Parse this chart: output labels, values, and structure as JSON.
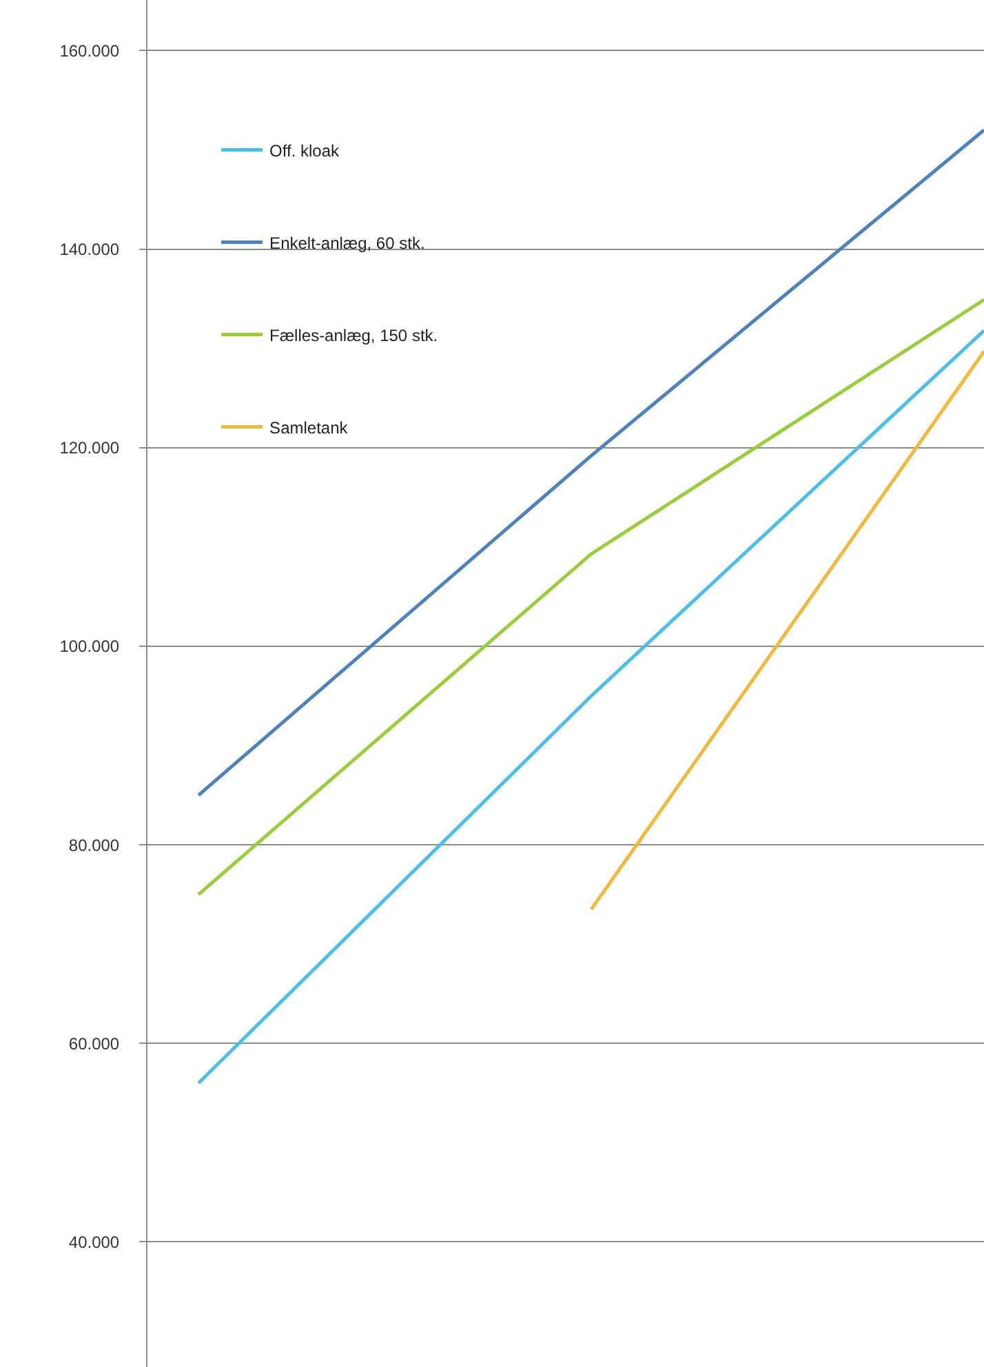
{
  "chart_data": {
    "type": "line",
    "categories": [
      null,
      null,
      null
    ],
    "series": [
      {
        "name": "Off. kloak",
        "color": "#4bbfe8",
        "values": [
          56,
          95,
          131.8
        ]
      },
      {
        "name": "Enkelt-anlæg, 60 stk.",
        "color": "#4f81bd",
        "values": [
          85,
          119.2,
          152
        ]
      },
      {
        "name": "Fælles-anlæg, 150 stk.",
        "color": "#9bcc3c",
        "values": [
          75,
          109.3,
          134.9
        ]
      },
      {
        "name": "Samletank",
        "color": "#f0b83c",
        "values": [
          null,
          73.5,
          129.7
        ]
      }
    ],
    "ylim": [
      27.4,
      165.1
    ],
    "yticks": [
      {
        "value": 40,
        "label": "40.000"
      },
      {
        "value": 60,
        "label": "60.000"
      },
      {
        "value": 80,
        "label": "80.000"
      },
      {
        "value": 100,
        "label": "100.000"
      },
      {
        "value": 120,
        "label": "120.000"
      },
      {
        "value": 140,
        "label": "140.000"
      },
      {
        "value": 160,
        "label": "160.000"
      }
    ],
    "grid": "y",
    "legend": "top left",
    "tick_labels": "y",
    "marker": "none",
    "line_style": "solid"
  }
}
